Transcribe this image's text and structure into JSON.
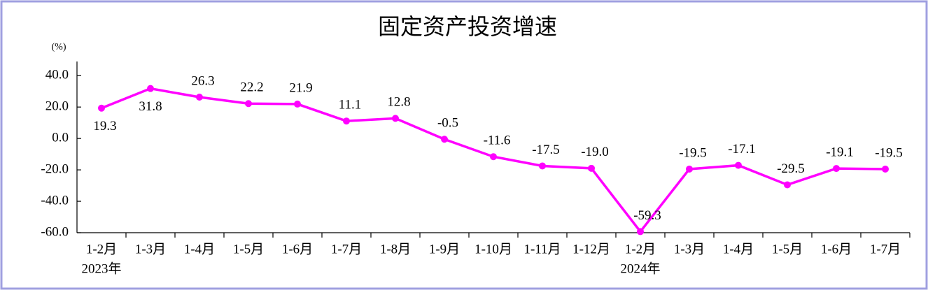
{
  "chart_data": {
    "type": "line",
    "title": "固定资产投资增速",
    "y_unit_label": "(%)",
    "categories": [
      "1-2月",
      "1-3月",
      "1-4月",
      "1-5月",
      "1-6月",
      "1-7月",
      "1-8月",
      "1-9月",
      "1-10月",
      "1-11月",
      "1-12月",
      "1-2月",
      "1-3月",
      "1-4月",
      "1-5月",
      "1-6月",
      "1-7月"
    ],
    "x_group_labels": [
      "2023年",
      null,
      null,
      null,
      null,
      null,
      null,
      null,
      null,
      null,
      null,
      "2024年",
      null,
      null,
      null,
      null,
      null
    ],
    "series": [
      {
        "name": "固定资产投资增速",
        "color": "#ff00ff",
        "values": [
          19.3,
          31.8,
          26.3,
          22.2,
          21.9,
          11.1,
          12.8,
          -0.5,
          -11.6,
          -17.5,
          -19.0,
          -59.3,
          -19.5,
          -17.1,
          -29.5,
          -19.1,
          -19.5
        ],
        "value_labels": [
          "19.3",
          "31.8",
          "26.3",
          "22.2",
          "21.9",
          "11.1",
          "12.8",
          "-0.5",
          "-11.6",
          "-17.5",
          "-19.0",
          "-59.3",
          "-19.5",
          "-17.1",
          "-29.5",
          "-19.1",
          "-19.5"
        ]
      }
    ],
    "ylim": [
      -60,
      49
    ],
    "yticks": [
      {
        "value": 40,
        "label": "40.0"
      },
      {
        "value": 20,
        "label": "20.0"
      },
      {
        "value": 0,
        "label": "0.0"
      },
      {
        "value": -20,
        "label": "-20.0"
      },
      {
        "value": -40,
        "label": "-40.0"
      },
      {
        "value": -60,
        "label": "-60.0"
      }
    ],
    "grid": false
  }
}
